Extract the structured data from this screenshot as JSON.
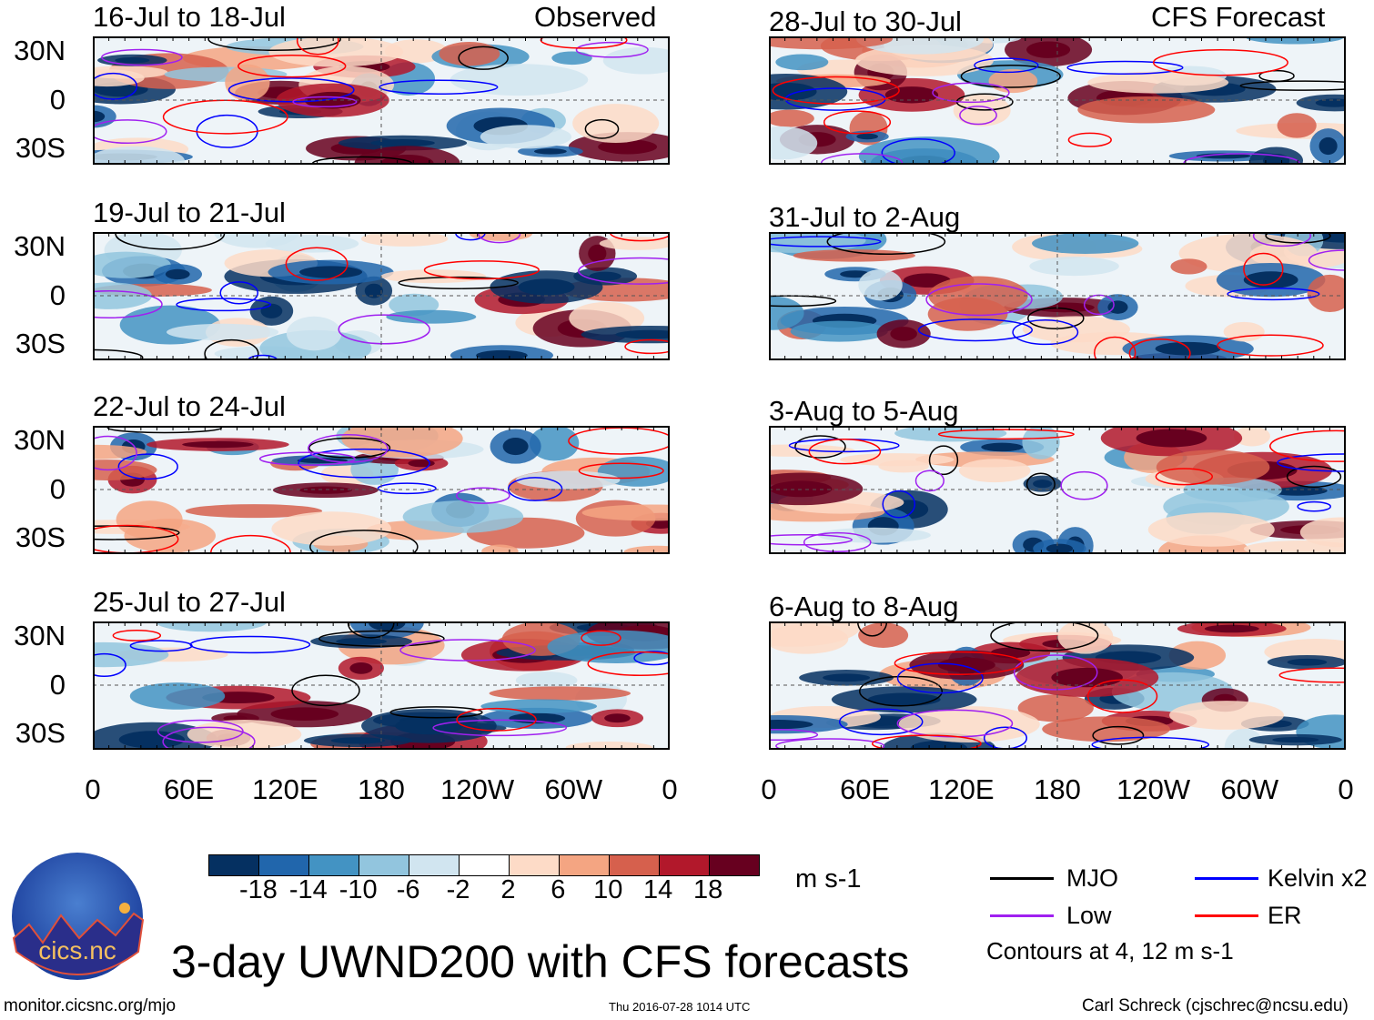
{
  "header": {
    "observed_label": "Observed",
    "forecast_label": "CFS Forecast"
  },
  "chart_data": {
    "type": "heatmap",
    "title": "3-day UWND200 with CFS forecasts",
    "units": "m s-1",
    "panels": [
      {
        "period": "16-Jul to 18-Jul",
        "source": "Observed"
      },
      {
        "period": "19-Jul to 21-Jul",
        "source": "Observed"
      },
      {
        "period": "22-Jul to 24-Jul",
        "source": "Observed"
      },
      {
        "period": "25-Jul to 27-Jul",
        "source": "Observed"
      },
      {
        "period": "28-Jul to 30-Jul",
        "source": "CFS Forecast"
      },
      {
        "period": "31-Jul to 2-Aug",
        "source": "CFS Forecast"
      },
      {
        "period": "3-Aug to 5-Aug",
        "source": "CFS Forecast"
      },
      {
        "period": "6-Aug to 8-Aug",
        "source": "CFS Forecast"
      }
    ],
    "lat_ticks": [
      "30N",
      "0",
      "30S"
    ],
    "lon_ticks": [
      "0",
      "60E",
      "120E",
      "180",
      "120W",
      "60W",
      "0"
    ],
    "colorbar": {
      "ticks": [
        "-18",
        "-14",
        "-10",
        "-6",
        "-2",
        "2",
        "6",
        "10",
        "14",
        "18"
      ],
      "colors": [
        "#053061",
        "#2166ac",
        "#4393c3",
        "#92c5de",
        "#d1e5f0",
        "#ffffff",
        "#fddbc7",
        "#f4a582",
        "#d6604d",
        "#b2182b",
        "#67001f"
      ]
    },
    "legend": [
      {
        "label": "MJO",
        "color": "#000000"
      },
      {
        "label": "Kelvin x2",
        "color": "#0000ff"
      },
      {
        "label": "Low",
        "color": "#a020f0"
      },
      {
        "label": "ER",
        "color": "#ff0000"
      }
    ],
    "contour_note": "Contours at 4, 12 m s-1"
  },
  "footer": {
    "logo_text": "cics.nc",
    "logo_ring_text": "Cooperative Institute for Climate and Satellites",
    "url": "monitor.cicsnc.org/mjo",
    "timestamp": "Thu 2016-07-28 1014 UTC",
    "credit": "Carl Schreck (cjschrec@ncsu.edu)"
  }
}
